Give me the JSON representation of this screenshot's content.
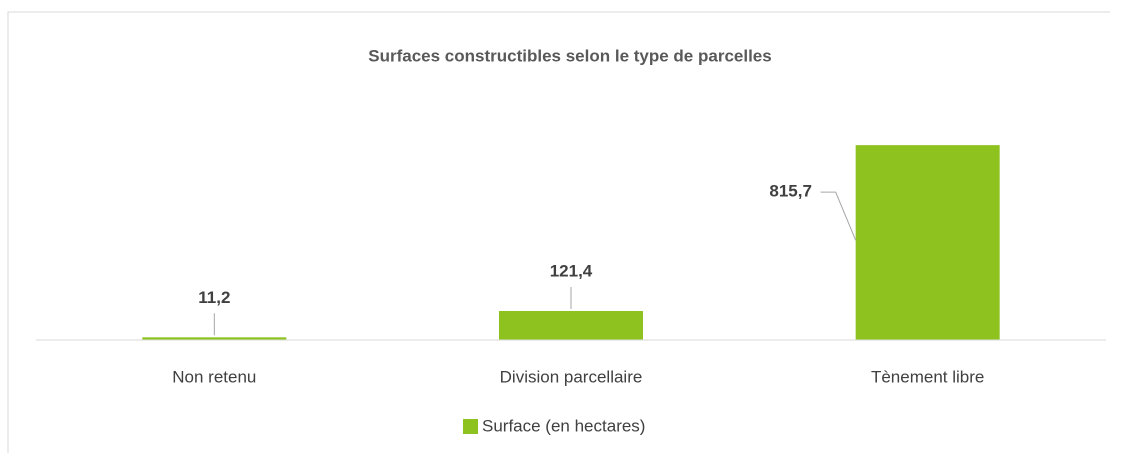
{
  "chart_data": {
    "type": "bar",
    "title": "Surfaces constructibles selon le type de parcelles",
    "categories": [
      "Non retenu",
      "Division parcellaire",
      "Tènement libre"
    ],
    "series": [
      {
        "name": "Surface (en hectares)",
        "color": "#8dc21f",
        "values": [
          11.2,
          121.4,
          815.7
        ],
        "value_labels": [
          "11,2",
          "121,4",
          "815,7"
        ]
      }
    ],
    "ylim": [
      0,
      900
    ],
    "legend": "bottom"
  }
}
